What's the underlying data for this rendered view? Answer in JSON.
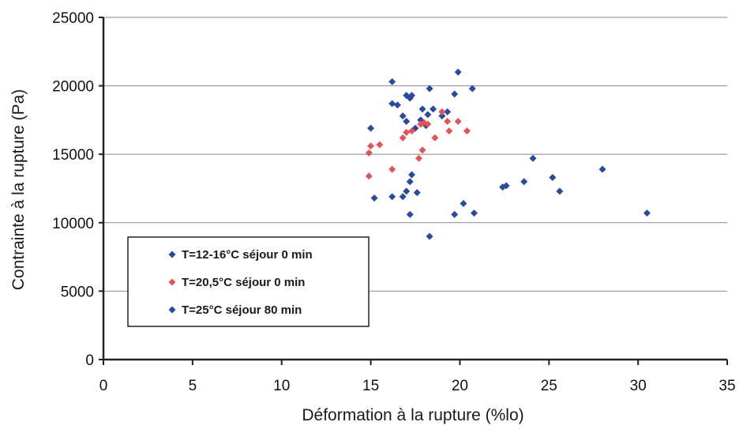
{
  "chart_data": {
    "type": "scatter",
    "title": "",
    "xlabel": "Déformation à la rupture (%lo)",
    "ylabel": "Contrainte à la rupture (Pa)",
    "xlim": [
      0,
      35
    ],
    "ylim": [
      0,
      25000
    ],
    "xticks": [
      "0",
      "5",
      "10",
      "15",
      "20",
      "25",
      "30",
      "35"
    ],
    "yticks": [
      "0",
      "5000",
      "10000",
      "15000",
      "20000",
      "25000"
    ],
    "grid": "horizontal",
    "legend_position": "lower-left",
    "series": [
      {
        "name": "T=12-16°C séjour 0 min",
        "color": "#2a4a9a",
        "marker": "diamond",
        "points": [
          [
            15.0,
            16900
          ],
          [
            16.2,
            20300
          ],
          [
            16.2,
            18700
          ],
          [
            16.5,
            18600
          ],
          [
            16.8,
            17800
          ],
          [
            17.0,
            19300
          ],
          [
            17.2,
            19100
          ],
          [
            17.3,
            19300
          ],
          [
            17.0,
            17400
          ],
          [
            17.5,
            16900
          ],
          [
            17.9,
            18300
          ],
          [
            18.2,
            17900
          ],
          [
            18.3,
            19800
          ],
          [
            18.5,
            18300
          ],
          [
            19.0,
            17800
          ],
          [
            19.3,
            18100
          ],
          [
            19.7,
            19400
          ],
          [
            19.9,
            21000
          ],
          [
            20.7,
            19800
          ],
          [
            17.8,
            17500
          ],
          [
            18.1,
            17100
          ]
        ]
      },
      {
        "name": "T=20,5°C séjour 0 min",
        "color": "#e0555a",
        "marker": "diamond",
        "points": [
          [
            14.9,
            15100
          ],
          [
            15.0,
            15600
          ],
          [
            15.5,
            15700
          ],
          [
            14.9,
            13400
          ],
          [
            16.2,
            13900
          ],
          [
            16.8,
            16200
          ],
          [
            17.0,
            16600
          ],
          [
            17.3,
            16700
          ],
          [
            17.7,
            14700
          ],
          [
            17.9,
            15300
          ],
          [
            18.0,
            17300
          ],
          [
            18.2,
            17200
          ],
          [
            18.6,
            16200
          ],
          [
            19.0,
            18100
          ],
          [
            19.3,
            17400
          ],
          [
            19.4,
            16700
          ],
          [
            19.9,
            17400
          ],
          [
            20.4,
            16700
          ],
          [
            17.8,
            17200
          ]
        ]
      },
      {
        "name": "T=25°C séjour 80 min",
        "color": "#2a4a9a",
        "marker": "diamond",
        "points": [
          [
            15.2,
            11800
          ],
          [
            16.2,
            11900
          ],
          [
            16.8,
            11900
          ],
          [
            17.0,
            12300
          ],
          [
            17.2,
            13000
          ],
          [
            17.3,
            13500
          ],
          [
            17.6,
            12200
          ],
          [
            17.2,
            10600
          ],
          [
            18.3,
            9000
          ],
          [
            19.7,
            10600
          ],
          [
            20.2,
            11400
          ],
          [
            20.8,
            10700
          ],
          [
            22.4,
            12600
          ],
          [
            22.6,
            12700
          ],
          [
            23.6,
            13000
          ],
          [
            24.1,
            14700
          ],
          [
            25.2,
            13300
          ],
          [
            25.6,
            12300
          ],
          [
            28.0,
            13900
          ],
          [
            30.5,
            10700
          ]
        ]
      }
    ]
  }
}
